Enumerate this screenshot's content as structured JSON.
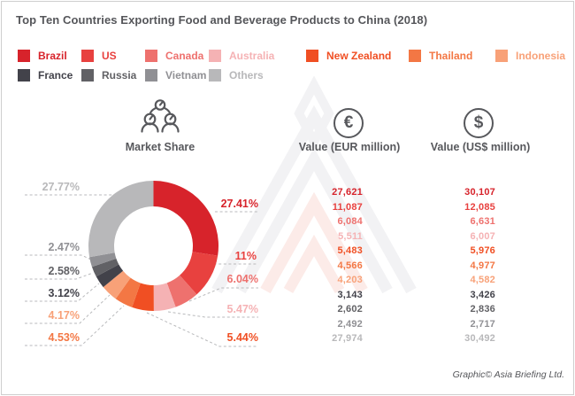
{
  "title": "Top Ten Countries Exporting Food and Beverage Products to China (2018)",
  "column_headers": {
    "market_share": "Market Share",
    "eur": "Value (EUR million)",
    "usd": "Value (US$ million)"
  },
  "icons": {
    "market_share": "people-share-icon",
    "eur": "euro-circle-icon",
    "eur_glyph": "€",
    "usd": "dollar-circle-icon",
    "usd_glyph": "$"
  },
  "footer": {
    "credit": "Graphic© Asia Briefing Ltd."
  },
  "colors": {
    "title_text": "#55565a",
    "header_text": "#57585c",
    "leader_line": "#b9babc",
    "frame_border": "#cfcfcf"
  },
  "chart_data": {
    "type": "pie",
    "donut": true,
    "title": "Top Ten Countries Exporting Food and Beverage Products to China (2018)",
    "legend_position": "top",
    "start_angle_deg": 0,
    "direction": "clockwise",
    "inner_radius_ratio": 0.61,
    "value_columns": [
      "Value (EUR million)",
      "Value (US$ million)"
    ],
    "series": [
      {
        "name": "Brazil",
        "share_pct": 27.41,
        "share_label": "27.41%",
        "eur_million": 27621,
        "eur_label": "27,621",
        "usd_million": 30107,
        "usd_label": "30,107",
        "color": "#d7232b"
      },
      {
        "name": "US",
        "share_pct": 11.0,
        "share_label": "11%",
        "eur_million": 11087,
        "eur_label": "11,087",
        "usd_million": 12085,
        "usd_label": "12,085",
        "color": "#e8413f"
      },
      {
        "name": "Canada",
        "share_pct": 6.04,
        "share_label": "6.04%",
        "eur_million": 6084,
        "eur_label": "6,084",
        "usd_million": 6631,
        "usd_label": "6,631",
        "color": "#ee716e"
      },
      {
        "name": "Australia",
        "share_pct": 5.47,
        "share_label": "5.47%",
        "eur_million": 5511,
        "eur_label": "5,511",
        "usd_million": 6007,
        "usd_label": "6,007",
        "color": "#f5b2b4"
      },
      {
        "name": "New Zealand",
        "share_pct": 5.44,
        "share_label": "5.44%",
        "eur_million": 5483,
        "eur_label": "5,483",
        "usd_million": 5976,
        "usd_label": "5,976",
        "color": "#f04f23"
      },
      {
        "name": "Thailand",
        "share_pct": 4.53,
        "share_label": "4.53%",
        "eur_million": 4566,
        "eur_label": "4,566",
        "usd_million": 4977,
        "usd_label": "4,977",
        "color": "#f37744"
      },
      {
        "name": "Indonesia",
        "share_pct": 4.17,
        "share_label": "4.17%",
        "eur_million": 4203,
        "eur_label": "4,203",
        "usd_million": 4582,
        "usd_label": "4,582",
        "color": "#f8a178"
      },
      {
        "name": "France",
        "share_pct": 3.12,
        "share_label": "3.12%",
        "eur_million": 3143,
        "eur_label": "3,143",
        "usd_million": 3426,
        "usd_label": "3,426",
        "color": "#42424a"
      },
      {
        "name": "Russia",
        "share_pct": 2.58,
        "share_label": "2.58%",
        "eur_million": 2602,
        "eur_label": "2,602",
        "usd_million": 2836,
        "usd_label": "2,836",
        "color": "#616165"
      },
      {
        "name": "Vietnam",
        "share_pct": 2.47,
        "share_label": "2.47%",
        "eur_million": 2492,
        "eur_label": "2,492",
        "usd_million": 2717,
        "usd_label": "2,717",
        "color": "#909094"
      },
      {
        "name": "Others",
        "share_pct": 27.77,
        "share_label": "27.77%",
        "eur_million": 27974,
        "eur_label": "27,974",
        "usd_million": 30492,
        "usd_label": "30,492",
        "color": "#b8b8ba"
      }
    ]
  }
}
